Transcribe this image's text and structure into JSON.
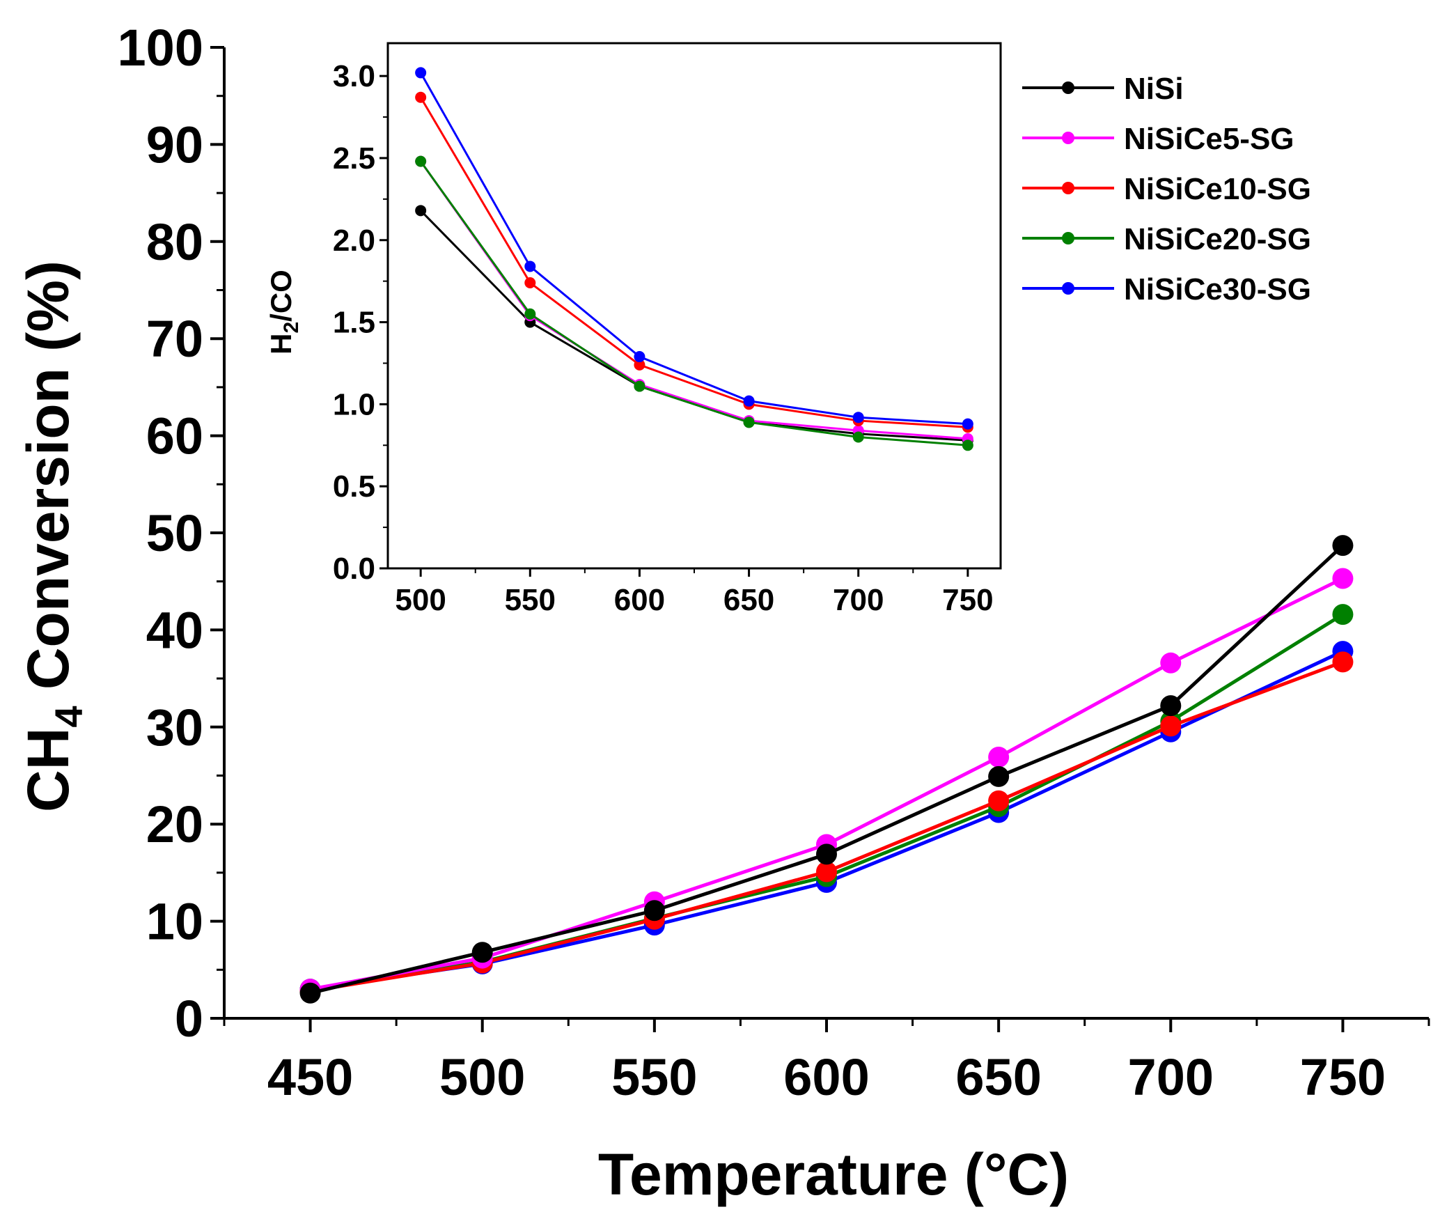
{
  "chart_data": [
    {
      "type": "line",
      "role": "main",
      "xlabel": "Temperature (°C)",
      "ylabel_main": "CH",
      "ylabel_sub": "4",
      "ylabel_rest": " Conversion (%)",
      "xlim": [
        425,
        775
      ],
      "ylim": [
        0,
        100
      ],
      "x_ticks": [
        450,
        500,
        550,
        600,
        650,
        700,
        750
      ],
      "y_ticks": [
        0,
        10,
        20,
        30,
        40,
        50,
        60,
        70,
        80,
        90,
        100
      ],
      "x": [
        450,
        500,
        550,
        600,
        650,
        700,
        750
      ],
      "series": [
        {
          "name": "NiSiCe30-SG",
          "color": "#0000ff",
          "values": [
            3.0,
            5.6,
            9.6,
            14.0,
            21.2,
            29.5,
            37.8
          ]
        },
        {
          "name": "NiSiCe20-SG",
          "color": "#008000",
          "values": [
            3.0,
            5.8,
            10.3,
            14.6,
            21.8,
            30.6,
            41.6
          ]
        },
        {
          "name": "NiSiCe10-SG",
          "color": "#ff0000",
          "values": [
            2.8,
            5.7,
            10.2,
            15.1,
            22.4,
            30.1,
            36.7
          ]
        },
        {
          "name": "NiSiCe5-SG",
          "color": "#ff00ff",
          "values": [
            3.0,
            6.2,
            12.0,
            17.9,
            26.9,
            36.6,
            45.3
          ]
        },
        {
          "name": "NiSi",
          "color": "#000000",
          "values": [
            2.6,
            6.8,
            11.1,
            16.9,
            24.9,
            32.2,
            48.7
          ]
        }
      ]
    },
    {
      "type": "line",
      "role": "inset",
      "ylabel_main": "H",
      "ylabel_sub": "2",
      "ylabel_rest": "/CO",
      "xlim": [
        485,
        765
      ],
      "ylim": [
        0.0,
        3.2
      ],
      "x_ticks": [
        500,
        550,
        600,
        650,
        700,
        750
      ],
      "y_ticks": [
        "0.0",
        "0.5",
        "1.0",
        "1.5",
        "2.0",
        "2.5",
        "3.0"
      ],
      "x": [
        500,
        550,
        600,
        650,
        700,
        750
      ],
      "series": [
        {
          "name": "NiSi",
          "color": "#000000",
          "values": [
            2.18,
            1.5,
            1.11,
            0.89,
            0.82,
            0.78
          ]
        },
        {
          "name": "NiSiCe5-SG",
          "color": "#ff00ff",
          "values": [
            2.48,
            1.54,
            1.12,
            0.9,
            0.84,
            0.79
          ]
        },
        {
          "name": "NiSiCe20-SG",
          "color": "#008000",
          "values": [
            2.48,
            1.55,
            1.11,
            0.89,
            0.8,
            0.75
          ]
        },
        {
          "name": "NiSiCe10-SG",
          "color": "#ff0000",
          "values": [
            2.87,
            1.74,
            1.24,
            1.0,
            0.9,
            0.86
          ]
        },
        {
          "name": "NiSiCe30-SG",
          "color": "#0000ff",
          "values": [
            3.02,
            1.84,
            1.29,
            1.02,
            0.92,
            0.88
          ]
        }
      ]
    }
  ],
  "legend": {
    "placement": "top-right",
    "entries": [
      {
        "label": "NiSi",
        "color": "#000000"
      },
      {
        "label": "NiSiCe5-SG",
        "color": "#ff00ff"
      },
      {
        "label": "NiSiCe10-SG",
        "color": "#ff0000"
      },
      {
        "label": "NiSiCe20-SG",
        "color": "#008000"
      },
      {
        "label": "NiSiCe30-SG",
        "color": "#0000ff"
      }
    ]
  }
}
